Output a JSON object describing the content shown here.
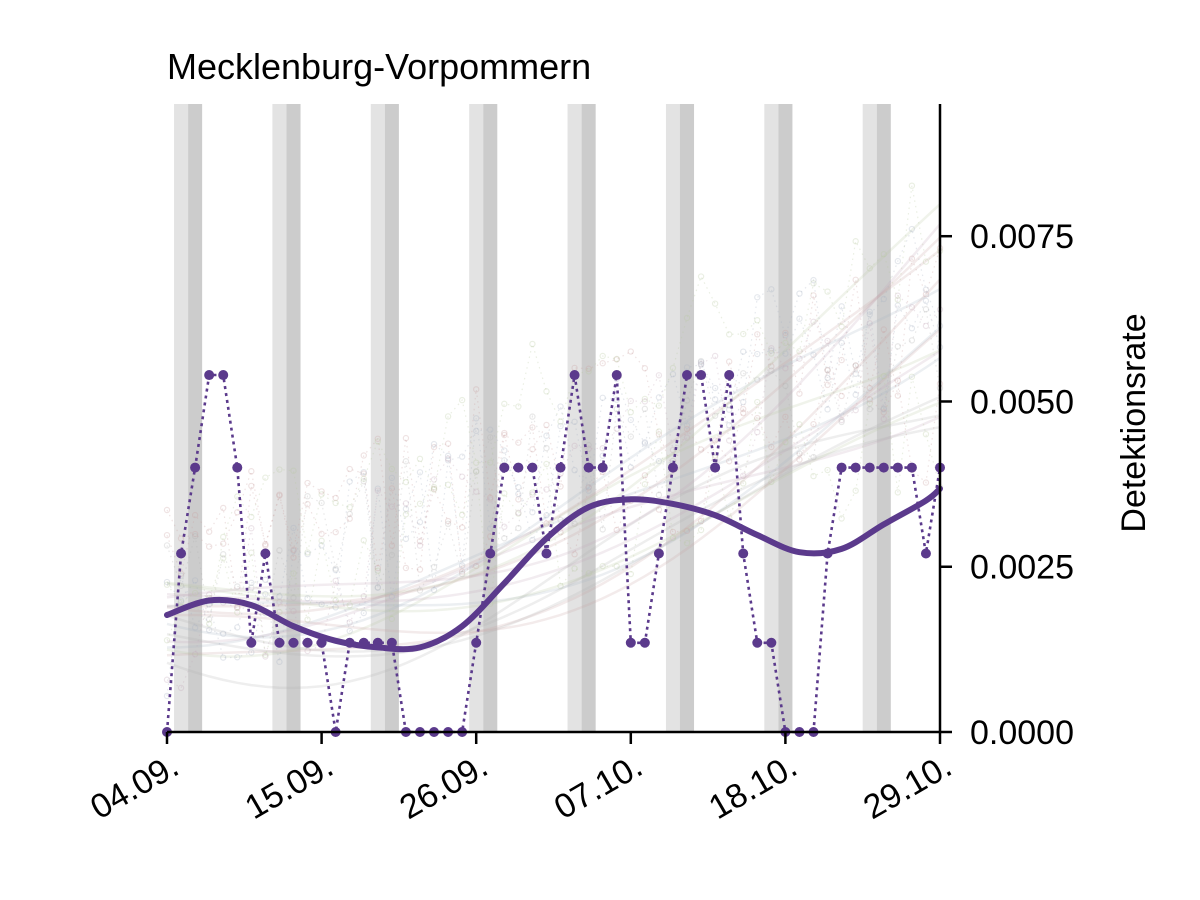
{
  "chart_data": {
    "type": "line",
    "title": "Mecklenburg-Vorpommern",
    "xlabel": "",
    "ylabel": "Detektionsrate",
    "x_tick_labels": [
      "04.09.",
      "15.09.",
      "26.09.",
      "07.10.",
      "18.10.",
      "29.10."
    ],
    "y_tick_labels": [
      "0.0000",
      "0.0025",
      "0.0050",
      "0.0075"
    ],
    "xlim": [
      "04.09.",
      "29.10."
    ],
    "ylim": [
      0,
      0.0095
    ],
    "y_axis_position": "right",
    "grid": false,
    "colors": {
      "main": "#5b3a8c",
      "weekend_light": "#e3e3e3",
      "weekend_dark": "#cccccc",
      "background_lines": [
        "#c9a3a3",
        "#a8b4c4",
        "#b9c9a3",
        "#c4a8b9",
        "#b3b3b3"
      ]
    },
    "weekend_bands": [
      {
        "sat": "05.09.",
        "sun": "06.09."
      },
      {
        "sat": "12.09.",
        "sun": "13.09."
      },
      {
        "sat": "19.09.",
        "sun": "20.09."
      },
      {
        "sat": "26.09.",
        "sun": "27.09."
      },
      {
        "sat": "03.10.",
        "sun": "04.10."
      },
      {
        "sat": "10.10.",
        "sun": "11.10."
      },
      {
        "sat": "17.10.",
        "sun": "18.10."
      },
      {
        "sat": "24.10.",
        "sun": "25.10."
      }
    ],
    "series": [
      {
        "style": "dotted-markers",
        "x": [
          "04.09.",
          "05.09.",
          "06.09.",
          "07.09.",
          "08.09.",
          "09.09.",
          "10.09.",
          "11.09.",
          "12.09.",
          "13.09.",
          "14.09.",
          "15.09.",
          "16.09.",
          "17.09.",
          "18.09.",
          "19.09.",
          "20.09.",
          "21.09.",
          "22.09.",
          "23.09.",
          "24.09.",
          "25.09.",
          "26.09.",
          "27.09.",
          "28.09.",
          "29.09.",
          "30.09.",
          "01.10.",
          "02.10.",
          "03.10.",
          "04.10.",
          "05.10.",
          "06.10.",
          "07.10.",
          "08.10.",
          "09.10.",
          "10.10.",
          "11.10.",
          "12.10.",
          "13.10.",
          "14.10.",
          "15.10.",
          "16.10.",
          "17.10.",
          "18.10.",
          "19.10.",
          "20.10.",
          "21.10.",
          "22.10.",
          "23.10.",
          "24.10.",
          "25.10.",
          "26.10.",
          "27.10.",
          "28.10.",
          "29.10."
        ],
        "values": [
          0.0,
          0.0027,
          0.004,
          0.0054,
          0.0054,
          0.004,
          0.00135,
          0.0027,
          0.00135,
          0.00135,
          0.00135,
          0.00135,
          0.0,
          0.00135,
          0.00135,
          0.00135,
          0.00135,
          0.0,
          0.0,
          0.0,
          0.0,
          0.0,
          0.00135,
          0.0027,
          0.004,
          0.004,
          0.004,
          0.0027,
          0.004,
          0.0054,
          0.004,
          0.004,
          0.0054,
          0.00135,
          0.00135,
          0.0027,
          0.004,
          0.0054,
          0.0054,
          0.004,
          0.0054,
          0.0027,
          0.00135,
          0.00135,
          0.0,
          0.0,
          0.0,
          0.0027,
          0.004,
          0.004,
          0.004,
          0.004,
          0.004,
          0.004,
          0.0027,
          0.004
        ]
      },
      {
        "style": "smooth-trend",
        "x": [
          "04.09.",
          "07.09.",
          "10.09.",
          "13.09.",
          "16.09.",
          "19.09.",
          "22.09.",
          "25.09.",
          "28.09.",
          "01.10.",
          "04.10.",
          "07.10.",
          "10.10.",
          "13.10.",
          "16.10.",
          "19.10.",
          "22.10.",
          "25.10.",
          "28.10.",
          "29.10."
        ],
        "values": [
          0.00177,
          0.00199,
          0.00192,
          0.0016,
          0.00138,
          0.00128,
          0.00128,
          0.0016,
          0.00225,
          0.00293,
          0.0034,
          0.00352,
          0.00345,
          0.00328,
          0.00298,
          0.00272,
          0.00277,
          0.00314,
          0.0035,
          0.00368
        ]
      }
    ]
  }
}
